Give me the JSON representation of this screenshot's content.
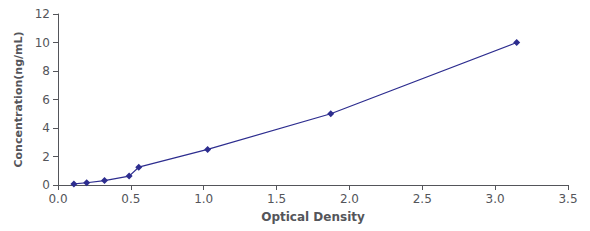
{
  "chart_data": {
    "type": "line",
    "x": [
      0.109,
      0.197,
      0.319,
      0.488,
      0.554,
      1.027,
      1.872,
      3.148
    ],
    "values": [
      0.078,
      0.156,
      0.313,
      0.625,
      1.25,
      2.5,
      5.0,
      10.0
    ],
    "color": "#2d2d8f",
    "marker": "diamond",
    "xlabel": "Optical Density",
    "ylabel": "Concentration(ng/mL)",
    "xlim": [
      0,
      3.5
    ],
    "ylim": [
      0,
      12
    ],
    "xticks": [
      {
        "value": 0,
        "label": "0.0"
      },
      0.5,
      {
        "value": 1,
        "label": "1.0"
      },
      1.5,
      {
        "value": 2,
        "label": "2.0"
      },
      2.5,
      {
        "value": 3,
        "label": "3.0"
      },
      3.5
    ],
    "yticks": [
      0,
      2,
      4,
      6,
      8,
      10,
      12
    ],
    "grid": false
  }
}
